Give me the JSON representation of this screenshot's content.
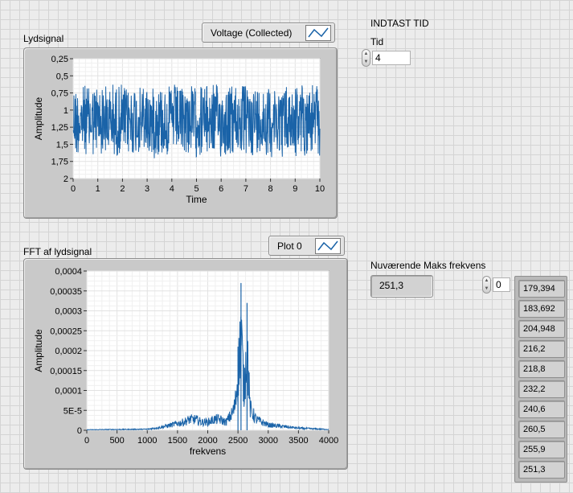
{
  "time_graph": {
    "title": "Lydsignal",
    "legend_label": "Voltage (Collected)",
    "xlabel": "Time",
    "ylabel": "Amplitude",
    "x_ticks": [
      "0",
      "1",
      "2",
      "3",
      "4",
      "5",
      "6",
      "7",
      "8",
      "9",
      "10"
    ],
    "y_ticks": [
      "0,25",
      "0,5",
      "0,75",
      "1",
      "1,25",
      "1,5",
      "1,75",
      "2"
    ]
  },
  "fft_graph": {
    "title": "FFT af lydsignal",
    "legend_label": "Plot 0",
    "xlabel": "frekvens",
    "ylabel": "Amplitude",
    "x_ticks": [
      "0",
      "500",
      "1000",
      "1500",
      "2000",
      "2500",
      "3000",
      "3500",
      "4000"
    ],
    "y_ticks": [
      "0,0004",
      "0,00035",
      "0,0003",
      "0,00025",
      "0,0002",
      "0,00015",
      "0,0001",
      "5E-5",
      "0"
    ]
  },
  "input": {
    "heading": "INDTAST TID",
    "label": "Tid",
    "value": "4"
  },
  "max_freq": {
    "label": "Nuværende Maks frekvens",
    "value": "251,3"
  },
  "array": {
    "index": "0",
    "values": [
      "179,394",
      "183,692",
      "204,948",
      "216,2",
      "218,8",
      "232,2",
      "240,6",
      "260,5",
      "255,9",
      "251,3"
    ]
  },
  "colors": {
    "plot_line": "#1a63a8",
    "grid": "#e2e2e2",
    "plot_bg": "#ffffff"
  },
  "chart_data": [
    {
      "type": "line",
      "title": "Lydsignal",
      "series": [
        {
          "name": "Voltage (Collected)"
        }
      ],
      "xlabel": "Time",
      "ylabel": "Amplitude",
      "xlim": [
        0,
        10
      ],
      "ylim": [
        0.25,
        2
      ],
      "y_axis_inverted": true,
      "signal_center": 1.15,
      "signal_band": [
        0.58,
        1.72
      ],
      "grid": true
    },
    {
      "type": "line",
      "title": "FFT af lydsignal",
      "series": [
        {
          "name": "Plot 0"
        }
      ],
      "xlabel": "frekvens",
      "ylabel": "Amplitude",
      "xlim": [
        0,
        4000
      ],
      "ylim": [
        0,
        0.0004
      ],
      "grid": true,
      "envelope": {
        "x": [
          0,
          1000,
          1200,
          1400,
          1600,
          1700,
          1800,
          1900,
          2000,
          2100,
          2200,
          2300,
          2400,
          2450,
          2500,
          2550,
          2600,
          2650,
          2700,
          2800,
          3000,
          3200,
          3500,
          4000
        ],
        "y": [
          2e-06,
          4e-06,
          1e-05,
          2e-05,
          3e-05,
          4e-05,
          4e-05,
          3e-05,
          3e-05,
          4e-05,
          4e-05,
          3e-05,
          6e-05,
          9e-05,
          0.0002,
          0.00037,
          0.00014,
          0.00032,
          8e-05,
          4e-05,
          2e-05,
          1.5e-05,
          8e-06,
          3e-06
        ]
      }
    }
  ]
}
